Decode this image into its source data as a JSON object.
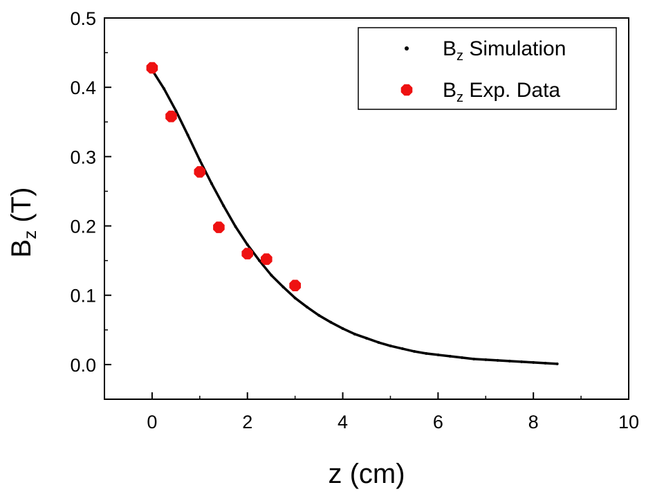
{
  "chart_data": {
    "type": "scatter",
    "xlabel": "z (cm)",
    "ylabel": {
      "base": "B",
      "sub": "z",
      "rest": " (T)"
    },
    "xlim": [
      -1,
      10
    ],
    "ylim": [
      -0.05,
      0.5
    ],
    "xticks": [
      0,
      2,
      4,
      6,
      8,
      10
    ],
    "xtick_labels": [
      "0",
      "2",
      "4",
      "6",
      "8",
      "10"
    ],
    "yticks": [
      0.0,
      0.1,
      0.2,
      0.3,
      0.4,
      0.5
    ],
    "ytick_labels": [
      "0.0",
      "0.1",
      "0.2",
      "0.3",
      "0.4",
      "0.5"
    ],
    "grid": false,
    "legend_position": "top-right",
    "series": [
      {
        "name": {
          "base": "B",
          "sub": "z",
          "rest": " Simulation"
        },
        "style": "line-dots",
        "color": "#000000",
        "x": [
          0,
          0.25,
          0.5,
          0.75,
          1.0,
          1.25,
          1.5,
          1.75,
          2.0,
          2.25,
          2.5,
          2.75,
          3.0,
          3.25,
          3.5,
          3.75,
          4.0,
          4.25,
          4.5,
          4.75,
          5.0,
          5.25,
          5.5,
          5.75,
          6.0,
          6.25,
          6.5,
          6.75,
          7.0,
          7.25,
          7.5,
          7.75,
          8.0,
          8.25,
          8.5
        ],
        "y": [
          0.425,
          0.398,
          0.366,
          0.331,
          0.295,
          0.261,
          0.229,
          0.199,
          0.173,
          0.15,
          0.129,
          0.112,
          0.096,
          0.083,
          0.071,
          0.061,
          0.052,
          0.044,
          0.038,
          0.032,
          0.027,
          0.023,
          0.019,
          0.016,
          0.014,
          0.012,
          0.01,
          0.008,
          0.007,
          0.006,
          0.005,
          0.004,
          0.003,
          0.002,
          0.001
        ]
      },
      {
        "name": {
          "base": "B",
          "sub": "z",
          "rest": " Exp. Data"
        },
        "style": "markers",
        "color": "#ee1111",
        "x": [
          0,
          0.4,
          1.0,
          1.4,
          2.0,
          2.4,
          3.0
        ],
        "y": [
          0.428,
          0.358,
          0.278,
          0.198,
          0.16,
          0.152,
          0.114
        ]
      }
    ]
  }
}
